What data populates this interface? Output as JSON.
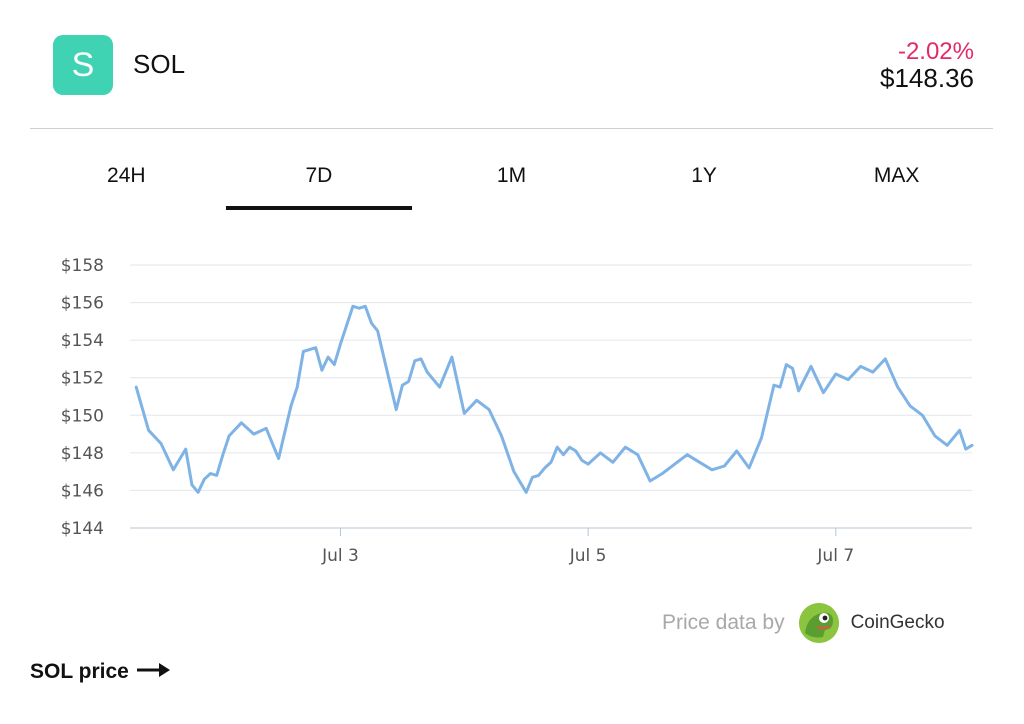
{
  "coin": {
    "icon_letter": "S",
    "symbol": "SOL",
    "change": "-2.02%",
    "price": "$148.36",
    "icon_color": "#3fd3b4",
    "change_color": "#e5286b"
  },
  "tabs": [
    {
      "label": "24H",
      "active": false
    },
    {
      "label": "7D",
      "active": true
    },
    {
      "label": "1M",
      "active": false
    },
    {
      "label": "1Y",
      "active": false
    },
    {
      "label": "MAX",
      "active": false
    }
  ],
  "attribution": {
    "prefix": "Price data by",
    "brand": "CoinGecko",
    "logo_icon": "coingecko-gecko-icon"
  },
  "footer": {
    "link_label": "SOL price",
    "icon": "arrow-right-icon"
  },
  "chart_data": {
    "type": "line",
    "title": "",
    "xlabel": "",
    "ylabel": "",
    "ylim": [
      144,
      158
    ],
    "yticks": [
      144,
      146,
      148,
      150,
      152,
      154,
      156,
      158
    ],
    "ytick_labels": [
      "$144",
      "$146",
      "$148",
      "$150",
      "$152",
      "$154",
      "$156",
      "$158"
    ],
    "xlim": [
      1.3,
      8.1
    ],
    "xticks": [
      3,
      5,
      7
    ],
    "xtick_labels": [
      "Jul 3",
      "Jul 5",
      "Jul 7"
    ],
    "grid": true,
    "line_color": "#7fb3e6",
    "series": [
      {
        "x": [
          1.35,
          1.45,
          1.55,
          1.65,
          1.75,
          1.8,
          1.85,
          1.9,
          1.95,
          2.0,
          2.05,
          2.1,
          2.2,
          2.3,
          2.4,
          2.5,
          2.6,
          2.65,
          2.7,
          2.8,
          2.85,
          2.9,
          2.95,
          3.0,
          3.1,
          3.15,
          3.2,
          3.25,
          3.3,
          3.35,
          3.45,
          3.5,
          3.55,
          3.6,
          3.65,
          3.7,
          3.8,
          3.9,
          4.0,
          4.1,
          4.2,
          4.3,
          4.4,
          4.5,
          4.55,
          4.6,
          4.65,
          4.7,
          4.75,
          4.8,
          4.85,
          4.9,
          4.95,
          5.0,
          5.1,
          5.2,
          5.3,
          5.4,
          5.5,
          5.6,
          5.7,
          5.8,
          5.9,
          6.0,
          6.1,
          6.2,
          6.3,
          6.4,
          6.5,
          6.55,
          6.6,
          6.65,
          6.7,
          6.8,
          6.9,
          7.0,
          7.1,
          7.2,
          7.3,
          7.4,
          7.5,
          7.6,
          7.7,
          7.8,
          7.9,
          8.0,
          8.05,
          8.1
        ],
        "y": [
          151.5,
          149.2,
          148.5,
          147.1,
          148.2,
          146.3,
          145.9,
          146.6,
          146.9,
          146.8,
          147.9,
          148.9,
          149.6,
          149.0,
          149.3,
          147.7,
          150.5,
          151.5,
          153.4,
          153.6,
          152.4,
          153.1,
          152.7,
          153.8,
          155.8,
          155.7,
          155.8,
          154.9,
          154.5,
          153.1,
          150.3,
          151.6,
          151.8,
          152.9,
          153.0,
          152.3,
          151.5,
          153.1,
          150.1,
          150.8,
          150.3,
          148.9,
          147.0,
          145.9,
          146.7,
          146.8,
          147.2,
          147.5,
          148.3,
          147.9,
          148.3,
          148.1,
          147.6,
          147.4,
          148.0,
          147.5,
          148.3,
          147.9,
          146.5,
          146.9,
          147.4,
          147.9,
          147.5,
          147.1,
          147.3,
          148.1,
          147.2,
          148.8,
          151.6,
          151.5,
          152.7,
          152.5,
          151.3,
          152.6,
          151.2,
          152.2,
          151.9,
          152.6,
          152.3,
          153.0,
          151.5,
          150.5,
          150.0,
          148.9,
          148.4,
          149.2,
          148.2,
          148.4
        ]
      }
    ]
  }
}
